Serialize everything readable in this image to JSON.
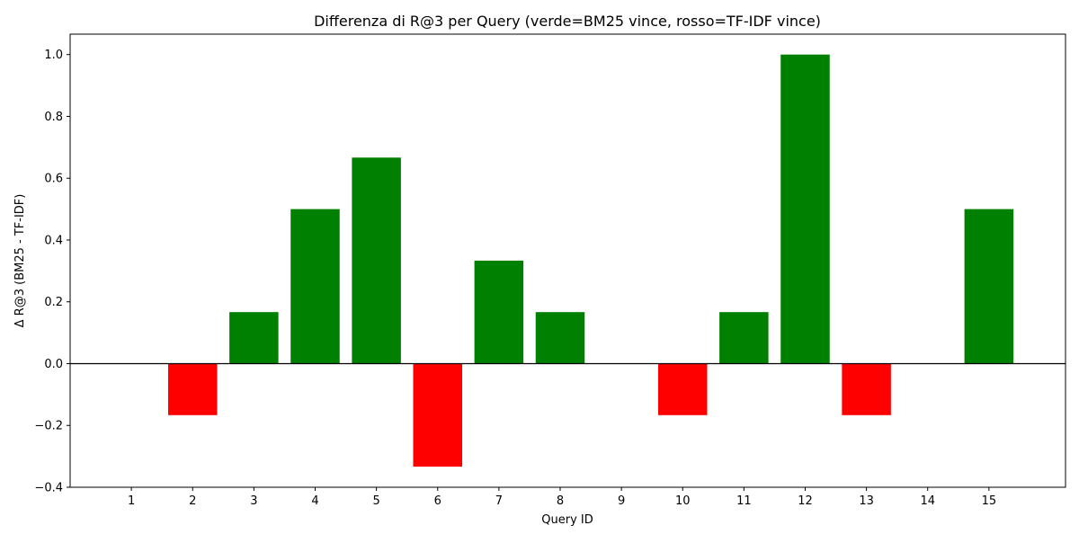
{
  "chart_data": {
    "type": "bar",
    "title": "Differenza di R@3 per Query (verde=BM25 vince, rosso=TF-IDF vince)",
    "xlabel": "Query ID",
    "ylabel": "Δ R@3 (BM25 - TF-IDF)",
    "categories": [
      "1",
      "2",
      "3",
      "4",
      "5",
      "6",
      "7",
      "8",
      "9",
      "10",
      "11",
      "12",
      "13",
      "14",
      "15"
    ],
    "values": [
      0,
      -0.1667,
      0.1667,
      0.5,
      0.6667,
      -0.3333,
      0.3333,
      0.1667,
      0,
      -0.1667,
      0.1667,
      1.0,
      -0.1667,
      0,
      0.5
    ],
    "ylim": [
      -0.4,
      1.066
    ],
    "yticks": [
      -0.4,
      -0.2,
      0.0,
      0.2,
      0.4,
      0.6,
      0.8,
      1.0
    ],
    "ytick_labels": [
      "−0.4",
      "−0.2",
      "0.0",
      "0.2",
      "0.4",
      "0.6",
      "0.8",
      "1.0"
    ],
    "xlim": [
      0,
      16.25
    ],
    "grid": false,
    "zero_line": true,
    "colors": {
      "positive": "#008000",
      "negative": "#ff0000",
      "axis": "#000000"
    }
  }
}
